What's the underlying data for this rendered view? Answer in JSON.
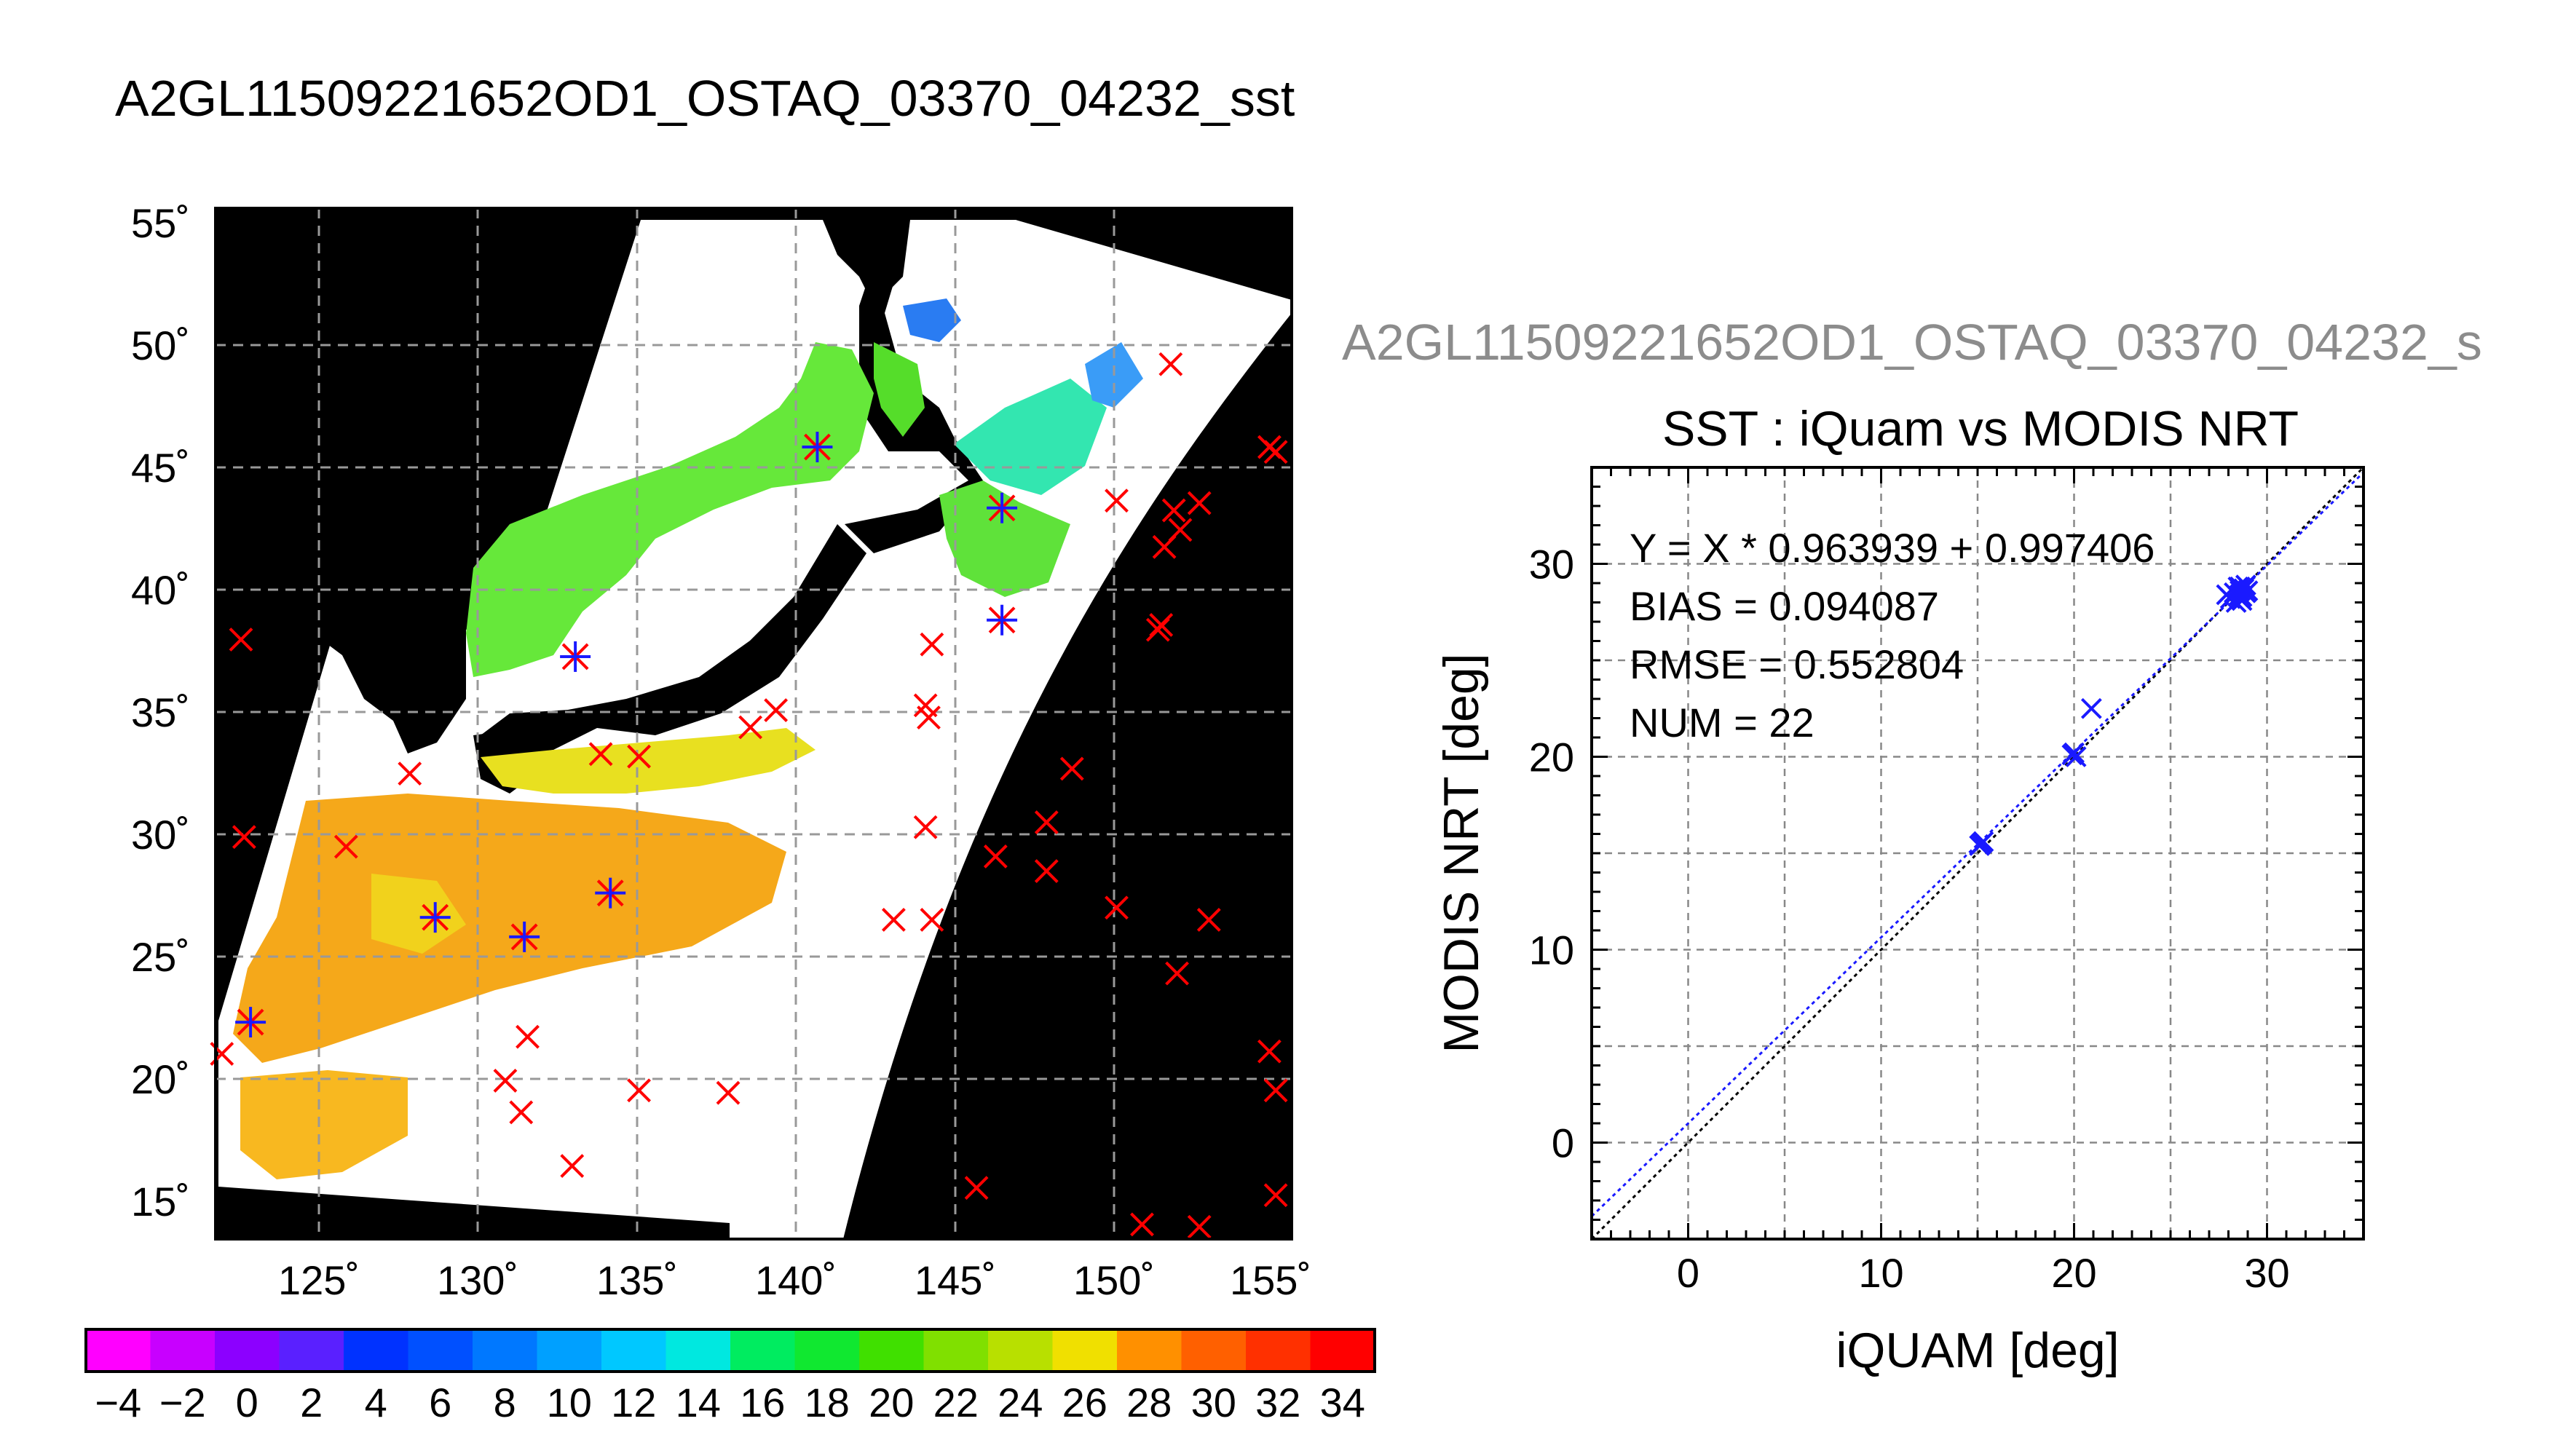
{
  "title": "A2GL11509221652OD1_OSTAQ_03370_04232_sst",
  "overlay_title": "A2GL11509221652OD1_OSTAQ_03370_04232_s",
  "map": {
    "lat_labels": [
      "55˚",
      "50˚",
      "45˚",
      "40˚",
      "35˚",
      "30˚",
      "25˚",
      "20˚",
      "15˚"
    ],
    "lon_labels": [
      "125˚",
      "130˚",
      "135˚",
      "140˚",
      "145˚",
      "150˚",
      "155˚"
    ],
    "lat_values": [
      55,
      50,
      45,
      40,
      35,
      30,
      25,
      20,
      15
    ],
    "lon_values": [
      125,
      130,
      135,
      140,
      145,
      150,
      155
    ],
    "lon_range": [
      121.7,
      155.5
    ],
    "lat_range": [
      13.2,
      55.5
    ],
    "red_marks": [
      [
        122.5,
        37.8
      ],
      [
        122.6,
        29.7
      ],
      [
        125.8,
        29.3
      ],
      [
        127.8,
        32.3
      ],
      [
        121.9,
        20.8
      ],
      [
        131.5,
        21.5
      ],
      [
        130.8,
        19.7
      ],
      [
        131.3,
        18.4
      ],
      [
        135,
        19.3
      ],
      [
        137.8,
        19.2
      ],
      [
        132.9,
        16.2
      ],
      [
        133.8,
        33.1
      ],
      [
        135,
        33.0
      ],
      [
        138.5,
        34.2
      ],
      [
        139.3,
        34.9
      ],
      [
        144,
        35.1
      ],
      [
        144.1,
        34.6
      ],
      [
        144.2,
        37.6
      ],
      [
        144,
        30.1
      ],
      [
        143,
        26.3
      ],
      [
        144.2,
        26.3
      ],
      [
        146.2,
        28.9
      ],
      [
        147.8,
        30.3
      ],
      [
        147.8,
        28.3
      ],
      [
        148.6,
        32.5
      ],
      [
        150,
        26.8
      ],
      [
        150.8,
        13.8
      ],
      [
        152.6,
        13.7
      ],
      [
        145.6,
        15.3
      ],
      [
        150,
        43.5
      ],
      [
        151.5,
        41.6
      ],
      [
        151.8,
        43.1
      ],
      [
        152,
        42.3
      ],
      [
        152.6,
        43.4
      ],
      [
        151.3,
        38.2
      ],
      [
        151.4,
        38.4
      ],
      [
        151.7,
        49.1
      ],
      [
        154.8,
        45.7
      ],
      [
        155,
        45.5
      ],
      [
        154.8,
        20.9
      ],
      [
        155,
        19.3
      ],
      [
        155,
        15.0
      ],
      [
        152.9,
        26.3
      ],
      [
        151.9,
        24.1
      ]
    ],
    "starred_marks": [
      [
        122.8,
        22.1
      ],
      [
        128.6,
        26.4
      ],
      [
        131.4,
        25.6
      ],
      [
        134.1,
        27.4
      ],
      [
        133.0,
        37.1
      ],
      [
        140.6,
        45.7
      ],
      [
        146.4,
        43.2
      ],
      [
        146.4,
        38.6
      ]
    ]
  },
  "colorbar": {
    "ticks": [
      "−4",
      "−2",
      "0",
      "2",
      "4",
      "6",
      "8",
      "10",
      "12",
      "14",
      "16",
      "18",
      "20",
      "22",
      "24",
      "26",
      "28",
      "30",
      "32",
      "34"
    ],
    "range": [
      -5,
      35
    ]
  },
  "scatter": {
    "title": "SST : iQuam vs MODIS NRT",
    "stats": [
      "Y = X * 0.963939 + 0.997406",
      "BIAS = 0.094087",
      "RMSE = 0.552804",
      "NUM = 22"
    ],
    "xlabel": "iQUAM [deg]",
    "ylabel": "MODIS NRT [deg]",
    "x_ticks": [
      "0",
      "10",
      "20",
      "30"
    ],
    "y_ticks": [
      "0",
      "10",
      "20",
      "30"
    ]
  },
  "chart_data": [
    {
      "type": "scatter",
      "title": "SST : iQuam vs MODIS NRT",
      "xlabel": "iQUAM [deg]",
      "ylabel": "MODIS NRT [deg]",
      "xlim": [
        -5,
        35
      ],
      "ylim": [
        -5,
        35
      ],
      "grid": true,
      "x": [
        15.1,
        15.2,
        15.3,
        19.9,
        20.0,
        20.1,
        20.9,
        27.9,
        28.1,
        28.3,
        28.4,
        28.5,
        28.6,
        28.6,
        28.7,
        28.8,
        28.9,
        29.0,
        28.5,
        28.7,
        28.9,
        28.6
      ],
      "y": [
        15.4,
        15.5,
        15.6,
        20.1,
        20.2,
        20.0,
        22.5,
        28.4,
        28.2,
        28.5,
        28.0,
        28.3,
        28.6,
        28.8,
        28.1,
        28.7,
        28.9,
        28.6,
        28.8,
        28.3,
        28.5,
        28.4
      ],
      "fit": {
        "slope": 0.963939,
        "intercept": 0.997406
      },
      "annotations": [
        "Y = X * 0.963939 + 0.997406",
        "BIAS = 0.094087",
        "RMSE = 0.552804",
        "NUM = 22"
      ]
    },
    {
      "type": "heatmap",
      "title": "A2GL11509221652OD1_OSTAQ_03370_04232_sst",
      "colorbar_range": [
        -5,
        35
      ],
      "colorbar_ticks": [
        -4,
        -2,
        0,
        2,
        4,
        6,
        8,
        10,
        12,
        14,
        16,
        18,
        20,
        22,
        24,
        26,
        28,
        30,
        32,
        34
      ],
      "xlim": [
        121.7,
        155.5
      ],
      "ylim": [
        13.2,
        55.5
      ],
      "x_ticks": [
        "125˚",
        "130˚",
        "135˚",
        "140˚",
        "145˚",
        "150˚",
        "155˚"
      ],
      "y_ticks": [
        "55˚",
        "50˚",
        "45˚",
        "40˚",
        "35˚",
        "30˚",
        "25˚",
        "20˚",
        "15˚"
      ]
    }
  ]
}
